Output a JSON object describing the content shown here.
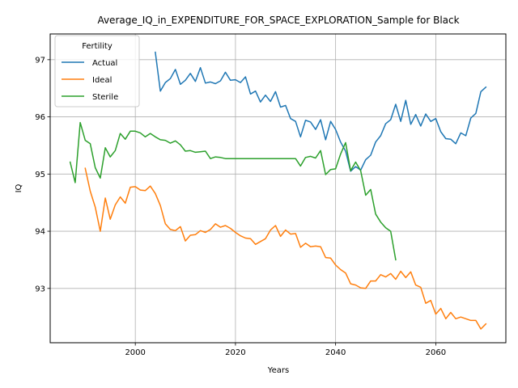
{
  "chart_data": {
    "type": "line",
    "title": "Average_IQ_in_EXPENDITURE_FOR_SPACE_EXPLORATION_Sample for Black",
    "xlabel": "Years",
    "ylabel": "IQ",
    "xlim": [
      1983,
      2074
    ],
    "ylim": [
      92.05,
      97.45
    ],
    "xticks": [
      2000,
      2020,
      2040,
      2060
    ],
    "yticks": [
      93,
      94,
      95,
      96,
      97
    ],
    "grid": true,
    "legend": {
      "title": "Fertility",
      "placement": "top-left"
    },
    "series": [
      {
        "name": "Actual",
        "color": "#1f77b4",
        "x": [
          2004,
          2005,
          2006,
          2007,
          2008,
          2009,
          2010,
          2011,
          2012,
          2013,
          2014,
          2015,
          2016,
          2017,
          2018,
          2019,
          2020,
          2021,
          2022,
          2023,
          2024,
          2025,
          2026,
          2027,
          2028,
          2029,
          2030,
          2031,
          2032,
          2033,
          2034,
          2035,
          2036,
          2037,
          2038,
          2039,
          2040,
          2041,
          2042,
          2043,
          2044,
          2045,
          2046,
          2047,
          2048,
          2049,
          2050,
          2051,
          2052,
          2053,
          2054,
          2055,
          2056,
          2057,
          2058,
          2059,
          2060,
          2061,
          2062,
          2063,
          2064,
          2065,
          2066,
          2067,
          2068,
          2069,
          2070
        ],
        "y": [
          97.13,
          96.45,
          96.6,
          96.67,
          96.83,
          96.57,
          96.64,
          96.76,
          96.62,
          96.86,
          96.59,
          96.61,
          96.58,
          96.63,
          96.78,
          96.64,
          96.65,
          96.6,
          96.7,
          96.4,
          96.45,
          96.26,
          96.38,
          96.27,
          96.44,
          96.17,
          96.2,
          95.97,
          95.92,
          95.65,
          95.94,
          95.91,
          95.78,
          95.95,
          95.6,
          95.92,
          95.78,
          95.56,
          95.4,
          95.05,
          95.13,
          95.07,
          95.25,
          95.33,
          95.56,
          95.67,
          95.88,
          95.95,
          96.22,
          95.92,
          96.29,
          95.87,
          96.04,
          95.84,
          96.05,
          95.92,
          95.97,
          95.74,
          95.62,
          95.61,
          95.53,
          95.72,
          95.67,
          95.98,
          96.06,
          96.44,
          96.52
        ]
      },
      {
        "name": "Ideal",
        "color": "#ff7f0e",
        "x": [
          1990,
          1991,
          1992,
          1993,
          1994,
          1995,
          1996,
          1997,
          1998,
          1999,
          2000,
          2001,
          2002,
          2003,
          2004,
          2005,
          2006,
          2007,
          2008,
          2009,
          2010,
          2011,
          2012,
          2013,
          2014,
          2015,
          2016,
          2017,
          2018,
          2019,
          2020,
          2021,
          2022,
          2023,
          2024,
          2025,
          2026,
          2027,
          2028,
          2029,
          2030,
          2031,
          2032,
          2033,
          2034,
          2035,
          2036,
          2037,
          2038,
          2039,
          2040,
          2041,
          2042,
          2043,
          2044,
          2045,
          2046,
          2047,
          2048,
          2049,
          2050,
          2051,
          2052,
          2053,
          2054,
          2055,
          2056,
          2057,
          2058,
          2059,
          2060,
          2061,
          2062,
          2063,
          2064,
          2065,
          2066,
          2067,
          2068,
          2069,
          2070
        ],
        "y": [
          95.1,
          94.7,
          94.42,
          94.0,
          94.58,
          94.21,
          94.46,
          94.6,
          94.49,
          94.77,
          94.78,
          94.72,
          94.71,
          94.79,
          94.66,
          94.45,
          94.13,
          94.03,
          94.01,
          94.08,
          93.83,
          93.93,
          93.94,
          94.01,
          93.98,
          94.03,
          94.13,
          94.07,
          94.1,
          94.05,
          93.98,
          93.92,
          93.88,
          93.87,
          93.77,
          93.82,
          93.87,
          94.02,
          94.1,
          93.91,
          94.02,
          93.95,
          93.96,
          93.72,
          93.79,
          93.73,
          93.74,
          93.73,
          93.54,
          93.53,
          93.41,
          93.33,
          93.27,
          93.08,
          93.06,
          93.01,
          93.0,
          93.13,
          93.13,
          93.24,
          93.2,
          93.26,
          93.16,
          93.3,
          93.19,
          93.29,
          93.06,
          93.02,
          92.74,
          92.79,
          92.55,
          92.65,
          92.47,
          92.58,
          92.47,
          92.5,
          92.47,
          92.44,
          92.44,
          92.29,
          92.38
        ]
      },
      {
        "name": "Sterile",
        "color": "#2ca02c",
        "x": [
          1987,
          1988,
          1989,
          1990,
          1991,
          1992,
          1993,
          1994,
          1995,
          1996,
          1997,
          1998,
          1999,
          2000,
          2001,
          2002,
          2003,
          2004,
          2005,
          2006,
          2007,
          2008,
          2009,
          2010,
          2011,
          2012,
          2013,
          2014,
          2015,
          2016,
          2017,
          2018,
          2019,
          2020,
          2021,
          2022,
          2023,
          2024,
          2025,
          2026,
          2027,
          2028,
          2029,
          2030,
          2031,
          2032,
          2033,
          2034,
          2035,
          2036,
          2037,
          2038,
          2039,
          2040,
          2041,
          2042,
          2043,
          2044,
          2045,
          2046,
          2047,
          2048,
          2049,
          2050,
          2051,
          2052
        ],
        "y": [
          95.21,
          94.85,
          95.9,
          95.59,
          95.53,
          95.11,
          94.93,
          95.46,
          95.3,
          95.41,
          95.71,
          95.61,
          95.75,
          95.75,
          95.72,
          95.65,
          95.71,
          95.65,
          95.6,
          95.59,
          95.54,
          95.58,
          95.51,
          95.4,
          95.41,
          95.38,
          95.39,
          95.4,
          95.27,
          95.3,
          95.29,
          95.27,
          95.27,
          95.27,
          95.27,
          95.27,
          95.27,
          95.27,
          95.27,
          95.27,
          95.27,
          95.27,
          95.27,
          95.27,
          95.27,
          95.27,
          95.14,
          95.29,
          95.31,
          95.28,
          95.41,
          94.99,
          95.08,
          95.09,
          95.35,
          95.55,
          95.06,
          95.21,
          95.06,
          94.63,
          94.73,
          94.3,
          94.16,
          94.06,
          94.0,
          93.5
        ]
      }
    ]
  }
}
